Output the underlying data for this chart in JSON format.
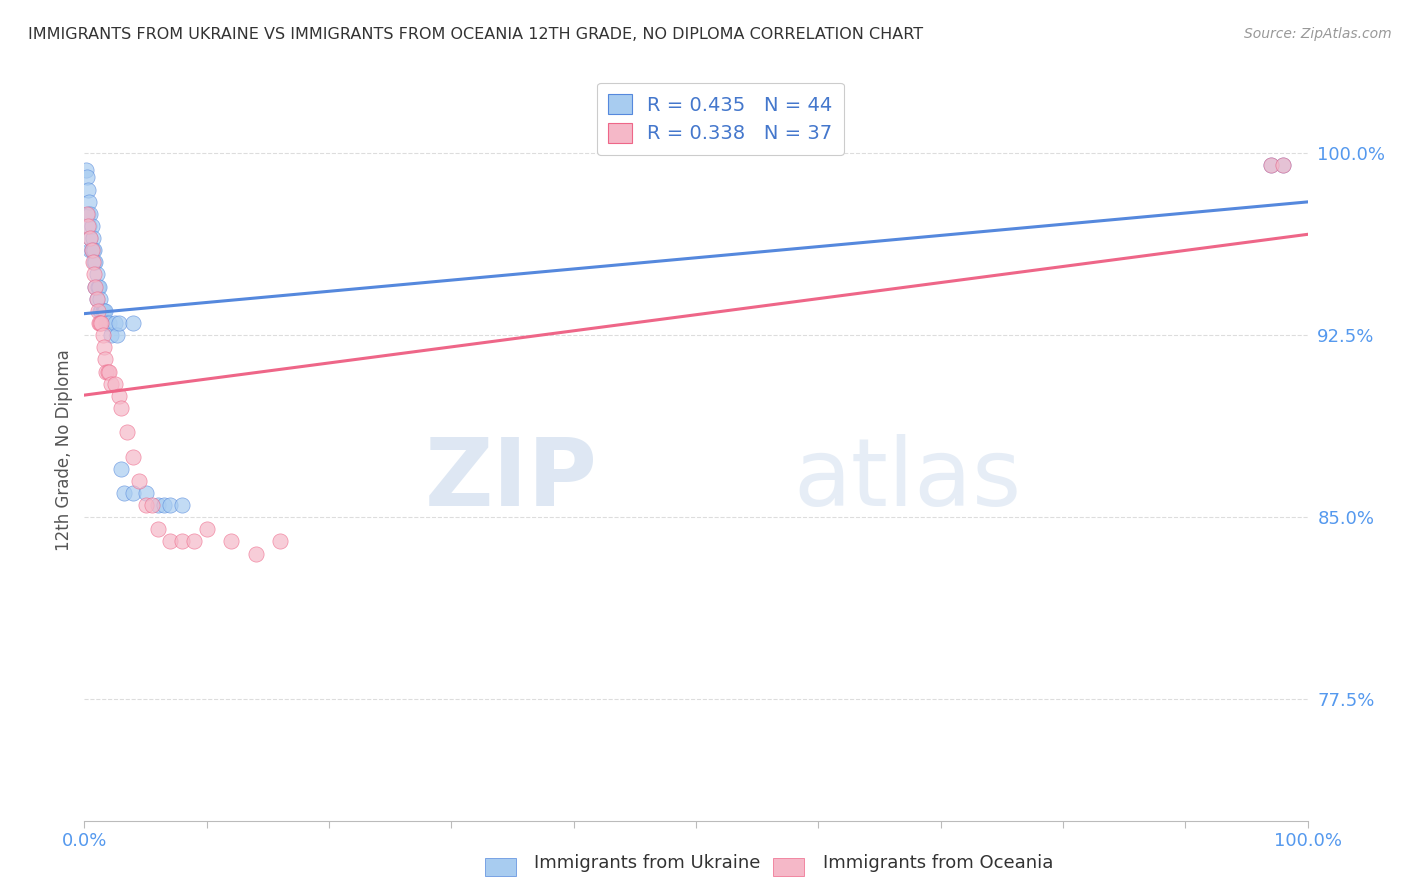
{
  "title": "IMMIGRANTS FROM UKRAINE VS IMMIGRANTS FROM OCEANIA 12TH GRADE, NO DIPLOMA CORRELATION CHART",
  "source": "Source: ZipAtlas.com",
  "ylabel": "12th Grade, No Diploma",
  "xlim": [
    0.0,
    1.0
  ],
  "ylim": [
    0.725,
    1.03
  ],
  "yticks": [
    0.775,
    0.85,
    0.925,
    1.0
  ],
  "ytick_labels": [
    "77.5%",
    "85.0%",
    "92.5%",
    "100.0%"
  ],
  "xticks": [
    0.0,
    0.1,
    0.2,
    0.3,
    0.4,
    0.5,
    0.6,
    0.7,
    0.8,
    0.9,
    1.0
  ],
  "xtick_labels": [
    "0.0%",
    "",
    "",
    "",
    "",
    "",
    "",
    "",
    "",
    "",
    "100.0%"
  ],
  "ukraine_color": "#A8CCF0",
  "oceania_color": "#F5B8C8",
  "trendline_ukraine_color": "#5588DD",
  "trendline_oceania_color": "#EE6688",
  "legend_ukraine_label": "Immigrants from Ukraine",
  "legend_oceania_label": "Immigrants from Oceania",
  "R_ukraine": 0.435,
  "N_ukraine": 44,
  "R_oceania": 0.338,
  "N_oceania": 37,
  "watermark_zip": "ZIP",
  "watermark_atlas": "atlas",
  "background_color": "#FFFFFF",
  "grid_color": "#DDDDDD",
  "title_color": "#333333",
  "axis_label_color": "#555555",
  "tick_color_right": "#5599EE",
  "tick_color_bottom": "#5599EE",
  "ukraine_x": [
    0.001,
    0.002,
    0.003,
    0.003,
    0.004,
    0.004,
    0.005,
    0.005,
    0.005,
    0.006,
    0.006,
    0.007,
    0.007,
    0.008,
    0.008,
    0.009,
    0.009,
    0.01,
    0.01,
    0.011,
    0.012,
    0.013,
    0.013,
    0.014,
    0.015,
    0.016,
    0.017,
    0.018,
    0.02,
    0.022,
    0.025,
    0.027,
    0.028,
    0.03,
    0.032,
    0.04,
    0.04,
    0.05,
    0.06,
    0.065,
    0.07,
    0.08,
    0.97,
    0.98
  ],
  "ukraine_y": [
    0.993,
    0.99,
    0.985,
    0.975,
    0.97,
    0.98,
    0.975,
    0.965,
    0.96,
    0.97,
    0.96,
    0.965,
    0.96,
    0.96,
    0.955,
    0.955,
    0.945,
    0.95,
    0.94,
    0.945,
    0.945,
    0.94,
    0.935,
    0.935,
    0.935,
    0.935,
    0.935,
    0.93,
    0.93,
    0.925,
    0.93,
    0.925,
    0.93,
    0.87,
    0.86,
    0.93,
    0.86,
    0.86,
    0.855,
    0.855,
    0.855,
    0.855,
    0.995,
    0.995
  ],
  "oceania_x": [
    0.002,
    0.003,
    0.005,
    0.006,
    0.007,
    0.008,
    0.009,
    0.01,
    0.011,
    0.012,
    0.013,
    0.014,
    0.015,
    0.016,
    0.017,
    0.018,
    0.019,
    0.02,
    0.022,
    0.025,
    0.028,
    0.03,
    0.035,
    0.04,
    0.045,
    0.05,
    0.055,
    0.06,
    0.07,
    0.08,
    0.09,
    0.1,
    0.12,
    0.14,
    0.16,
    0.97,
    0.98
  ],
  "oceania_y": [
    0.975,
    0.97,
    0.965,
    0.96,
    0.955,
    0.95,
    0.945,
    0.94,
    0.935,
    0.93,
    0.93,
    0.93,
    0.925,
    0.92,
    0.915,
    0.91,
    0.91,
    0.91,
    0.905,
    0.905,
    0.9,
    0.895,
    0.885,
    0.875,
    0.865,
    0.855,
    0.855,
    0.845,
    0.84,
    0.84,
    0.84,
    0.845,
    0.84,
    0.835,
    0.84,
    0.995,
    0.995
  ]
}
